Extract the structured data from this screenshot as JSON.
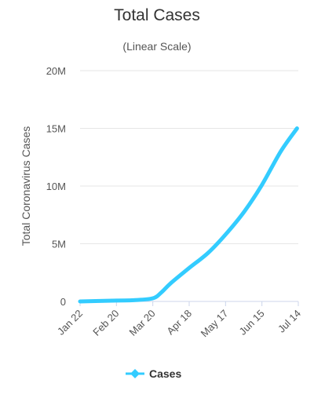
{
  "chart_data": {
    "type": "line",
    "title": "Total Cases",
    "subtitle": "(Linear Scale)",
    "xlabel": "",
    "ylabel": "Total Coronavirus Cases",
    "categories": [
      "Jan 22",
      "Feb 20",
      "Mar 20",
      "Apr 18",
      "May 17",
      "Jun 15",
      "Jul 14"
    ],
    "series": [
      {
        "name": "Cases",
        "color": "#33ccff",
        "values": [
          [
            0,
            0
          ],
          [
            29,
            76000
          ],
          [
            43,
            110000
          ],
          [
            58,
            270000
          ],
          [
            65,
            800000
          ],
          [
            72,
            1550000
          ],
          [
            87,
            2900000
          ],
          [
            102,
            4200000
          ],
          [
            116,
            5800000
          ],
          [
            131,
            7800000
          ],
          [
            145,
            10100000
          ],
          [
            160,
            13000000
          ],
          [
            173,
            15000000
          ]
        ]
      }
    ],
    "y_ticks": [
      {
        "value": 0,
        "label": "0"
      },
      {
        "value": 5000000,
        "label": "5M"
      },
      {
        "value": 10000000,
        "label": "10M"
      },
      {
        "value": 15000000,
        "label": "15M"
      },
      {
        "value": 20000000,
        "label": "20M"
      }
    ],
    "x_ticks": [
      {
        "value": 0,
        "label": "Jan 22"
      },
      {
        "value": 29,
        "label": "Feb 20"
      },
      {
        "value": 58,
        "label": "Mar 20"
      },
      {
        "value": 87,
        "label": "Apr 18"
      },
      {
        "value": 116,
        "label": "May 17"
      },
      {
        "value": 145,
        "label": "Jun 15"
      },
      {
        "value": 174,
        "label": "Jul 14"
      }
    ],
    "ylim": [
      0,
      20000000
    ],
    "grid": true,
    "legend": "bottom"
  }
}
